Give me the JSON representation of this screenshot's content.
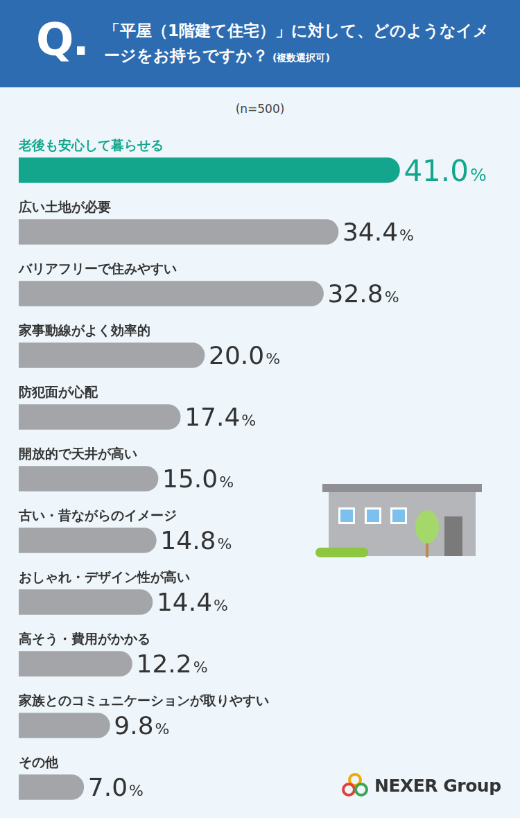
{
  "chart_data": {
    "type": "bar",
    "title": "「平屋（1階建て住宅）」に対して、どのようなイメージをお持ちですか？",
    "subtitle": "(n=500)",
    "annotations": [
      "Q.",
      "(複数選択可)",
      "NEXER Group"
    ],
    "orientation": "horizontal",
    "categories": [
      "老後も安心して暮らせる",
      "広い土地が必要",
      "バリアフリーで住みやすい",
      "家事動線がよく効率的",
      "防犯面が心配",
      "開放的で天井が高い",
      "古い・昔ながらのイメージ",
      "おしゃれ・デザイン性が高い",
      "高そう・費用がかかる",
      "家族とのコミュニケーションが取りやすい",
      "その他"
    ],
    "values": [
      41.0,
      34.4,
      32.8,
      20.0,
      17.4,
      15.0,
      14.8,
      14.4,
      12.2,
      9.8,
      7.0
    ],
    "value_labels": [
      "41.0%",
      "34.4%",
      "32.8%",
      "20.0%",
      "17.4%",
      "15.0%",
      "14.8%",
      "14.4%",
      "12.2%",
      "9.8%",
      "7.0%"
    ],
    "colors": [
      "#13a68c",
      "#a3a5a9",
      "#a3a5a9",
      "#a3a5a9",
      "#a3a5a9",
      "#a3a5a9",
      "#a3a5a9",
      "#a3a5a9",
      "#a3a5a9",
      "#a3a5a9",
      "#a3a5a9"
    ],
    "data_labels": true,
    "tick_labels": false,
    "grid": false,
    "xlim": [
      0,
      50
    ],
    "xticks": [
      0,
      50
    ]
  }
}
